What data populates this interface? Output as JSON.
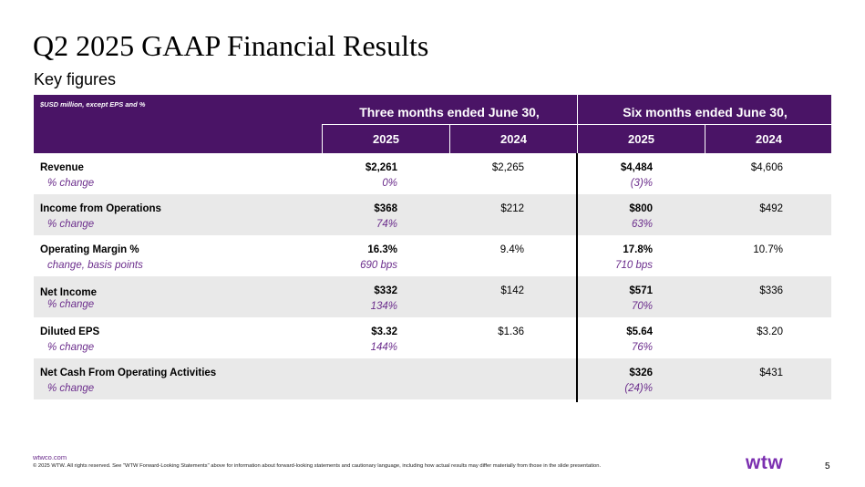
{
  "slide": {
    "title": "Q2 2025 GAAP Financial Results",
    "subtitle": "Key figures",
    "page_number": "5"
  },
  "table": {
    "unit_note": "$USD million, except EPS and %",
    "period_headers": [
      "Three months ended June 30,",
      "Six months ended June 30,"
    ],
    "year_headers": [
      "2025",
      "2024",
      "2025",
      "2024"
    ],
    "rows": [
      {
        "label": "Revenue",
        "sublabel": "% change",
        "values": [
          "$2,261",
          "$2,265",
          "$4,484",
          "$4,606"
        ],
        "changes": [
          "0%",
          "(3)%"
        ]
      },
      {
        "label": "Income from Operations",
        "sublabel": "% change",
        "values": [
          "$368",
          "$212",
          "$800",
          "$492"
        ],
        "changes": [
          "74%",
          "63%"
        ]
      },
      {
        "label": "Operating Margin %",
        "sublabel": "change, basis points",
        "values": [
          "16.3%",
          "9.4%",
          "17.8%",
          "10.7%"
        ],
        "changes": [
          "690 bps",
          "710 bps"
        ]
      },
      {
        "label": "Net Income",
        "sublabel": "% change",
        "values": [
          "$332",
          "$142",
          "$571",
          "$336"
        ],
        "changes": [
          "134%",
          "70%"
        ]
      },
      {
        "label": "Diluted EPS",
        "sublabel": "% change",
        "values": [
          "$3.32",
          "$1.36",
          "$5.64",
          "$3.20"
        ],
        "changes": [
          "144%",
          "76%"
        ]
      },
      {
        "label": "Net Cash From Operating Activities",
        "sublabel": "% change",
        "values": [
          "",
          "",
          "$326",
          "$431"
        ],
        "changes": [
          "",
          "(24)%"
        ]
      }
    ]
  },
  "footer": {
    "link": "wtwco.com",
    "disclaimer": "© 2025 WTW. All rights reserved. See \"WTW Forward-Looking Statements\" above for information about forward-looking statements and cautionary language, including how actual results may differ materially from those in the slide presentation.",
    "logo_text": "wtw"
  },
  "colors": {
    "header_bg": "#4a1466",
    "accent": "#6b2d8c",
    "logo": "#7b2fb0",
    "shaded_row": "#e9e9e9"
  }
}
